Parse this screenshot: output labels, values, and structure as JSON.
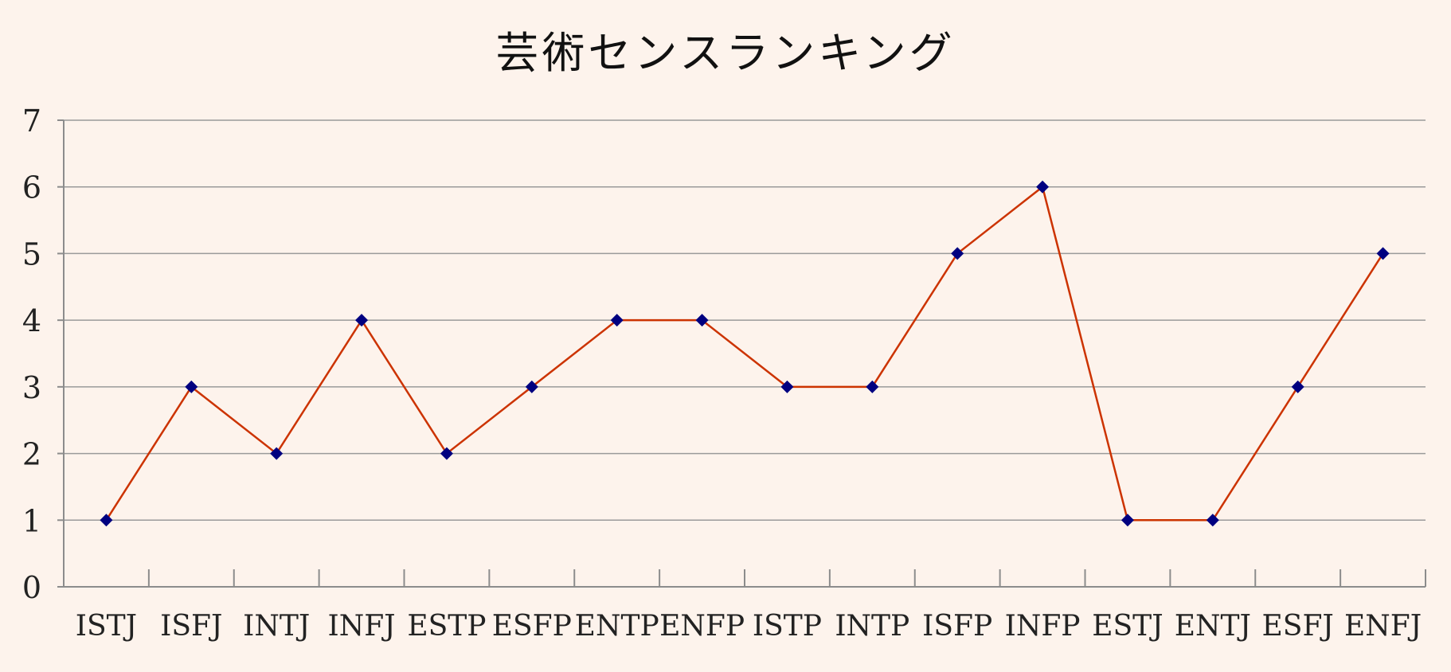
{
  "chart_data": {
    "type": "line",
    "title": "芸術センスランキング",
    "xlabel": "",
    "ylabel": "",
    "categories": [
      "ISTJ",
      "ISFJ",
      "INTJ",
      "INFJ",
      "ESTP",
      "ESFP",
      "ENTP",
      "ENFP",
      "ISTP",
      "INTP",
      "ISFP",
      "INFP",
      "ESTJ",
      "ENTJ",
      "ESFJ",
      "ENFJ"
    ],
    "series": [
      {
        "values": [
          1,
          3,
          2,
          4,
          2,
          3,
          4,
          4,
          3,
          3,
          5,
          6,
          1,
          1,
          3,
          5
        ]
      }
    ],
    "ylim": [
      0,
      7
    ],
    "yticks": [
      0,
      1,
      2,
      3,
      4,
      5,
      6,
      7
    ],
    "grid": true,
    "legend": "none",
    "colors": {
      "background": "#fdf3ec",
      "line": "#cc3300",
      "marker": "#000080",
      "grid": "#9a9a9a",
      "axis": "#8c8c8c"
    }
  }
}
